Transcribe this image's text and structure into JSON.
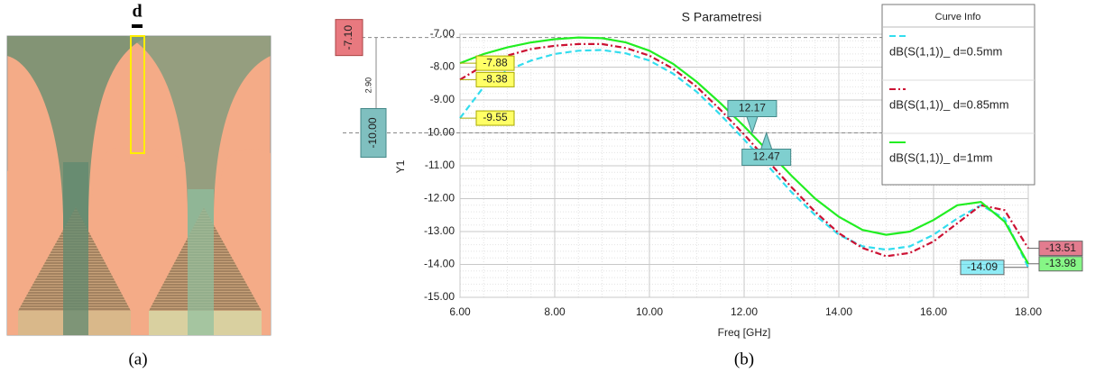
{
  "figure": {
    "dimension_label": "d",
    "caption_a": "(a)",
    "caption_b": "(b)"
  },
  "chart_data": {
    "type": "line",
    "title": "S Parametresi",
    "x_label": "Freq [GHz]",
    "y_label": "Y1",
    "legend_title": "Curve Info",
    "legend": "top-right",
    "grid": true,
    "x": [
      6,
      6.5,
      7,
      7.5,
      8,
      8.5,
      9,
      9.5,
      10,
      10.5,
      11,
      11.5,
      12,
      12.5,
      13,
      13.5,
      14,
      14.5,
      15,
      15.5,
      16,
      16.5,
      17,
      17.5,
      18
    ],
    "series": [
      {
        "name": "dB(S(1,1))_ d=0.5mm",
        "color": "#33ddee",
        "style": "dashed",
        "values": [
          -9.55,
          -8.6,
          -8.1,
          -7.8,
          -7.6,
          -7.5,
          -7.48,
          -7.58,
          -7.8,
          -8.2,
          -8.75,
          -9.45,
          -10.2,
          -11.0,
          -11.8,
          -12.5,
          -13.1,
          -13.45,
          -13.55,
          -13.45,
          -13.1,
          -12.6,
          -12.2,
          -12.6,
          -14.09
        ]
      },
      {
        "name": "dB(S(1,1))_ d=0.85mm",
        "color": "#cc1133",
        "style": "dashdot",
        "values": [
          -8.38,
          -7.95,
          -7.65,
          -7.45,
          -7.35,
          -7.3,
          -7.3,
          -7.42,
          -7.65,
          -8.05,
          -8.6,
          -9.3,
          -10.05,
          -10.85,
          -11.65,
          -12.4,
          -13.05,
          -13.5,
          -13.75,
          -13.65,
          -13.3,
          -12.75,
          -12.2,
          -12.35,
          -13.51
        ]
      },
      {
        "name": "dB(S(1,1))_ d=1mm",
        "color": "#22ee22",
        "style": "solid",
        "values": [
          -7.88,
          -7.6,
          -7.4,
          -7.25,
          -7.15,
          -7.1,
          -7.12,
          -7.25,
          -7.5,
          -7.9,
          -8.45,
          -9.1,
          -9.8,
          -10.55,
          -11.3,
          -12.0,
          -12.55,
          -12.95,
          -13.1,
          -13.0,
          -12.65,
          -12.2,
          -12.1,
          -12.7,
          -13.98
        ]
      }
    ],
    "xlim": [
      6,
      18
    ],
    "xticks": [
      {
        "value": 6,
        "label": "6.00"
      },
      {
        "value": 8,
        "label": "8.00"
      },
      {
        "value": 10,
        "label": "10.00"
      },
      {
        "value": 12,
        "label": "12.00"
      },
      {
        "value": 14,
        "label": "14.00"
      },
      {
        "value": 16,
        "label": "16.00"
      },
      {
        "value": 18,
        "label": "18.00"
      }
    ],
    "ylim": [
      -15,
      -7
    ],
    "yticks": [
      {
        "value": -15,
        "label": "-15.00"
      },
      {
        "value": -14,
        "label": "-14.00"
      },
      {
        "value": -13,
        "label": "-13.00"
      },
      {
        "value": -12,
        "label": "-12.00"
      },
      {
        "value": -11,
        "label": "-11.00"
      },
      {
        "value": -10,
        "label": "-10.00"
      },
      {
        "value": -9,
        "label": "-9.00"
      },
      {
        "value": -8,
        "label": "-8.00"
      },
      {
        "value": -7,
        "label": "-7.00"
      }
    ],
    "x_markers": [
      12.17,
      12.47
    ],
    "delta": {
      "top": {
        "value": -7.1,
        "label": "-7.10"
      },
      "bottom": {
        "value": -10,
        "label": "-10.00"
      },
      "diff": {
        "value": 2.9,
        "label": "2.90"
      }
    }
  }
}
